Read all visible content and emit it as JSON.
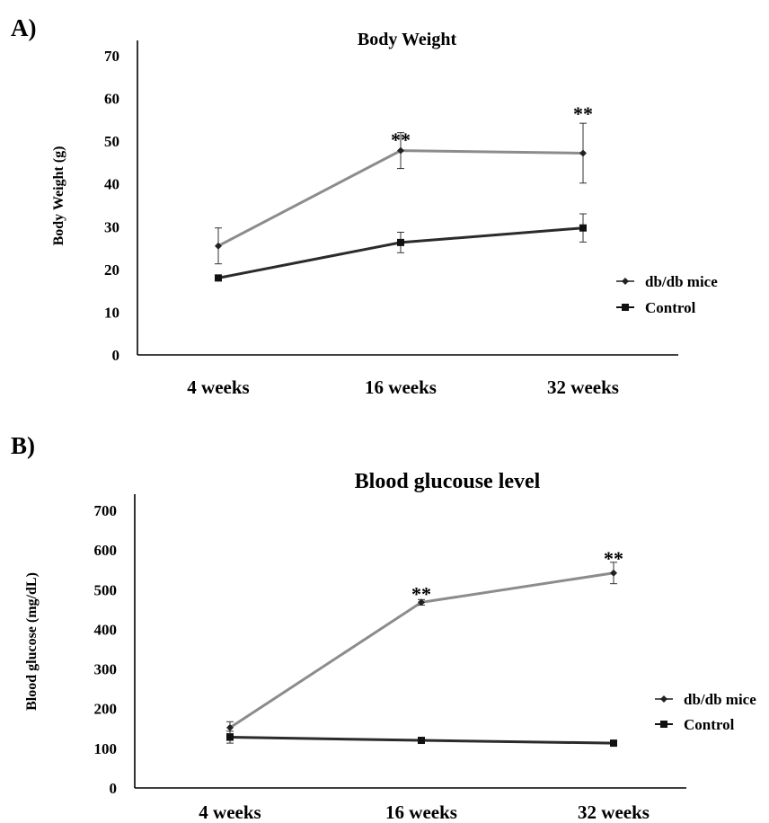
{
  "chart_data": [
    {
      "panel_label": "A)",
      "type": "line",
      "title": "Body Weight",
      "xlabel": "",
      "ylabel": "Body Weight (g)",
      "categories": [
        "4 weeks",
        "16 weeks",
        "32 weeks"
      ],
      "ylim": [
        0,
        70
      ],
      "yticks": [
        0,
        10,
        20,
        30,
        40,
        50,
        60,
        70
      ],
      "grid": false,
      "legend_position": "right",
      "series": [
        {
          "name": "db/db mice",
          "color": "#8c8c8c",
          "marker": "diamond",
          "values": [
            25.5,
            47.8,
            47.2
          ],
          "errors": [
            4.2,
            4.2,
            7.0
          ]
        },
        {
          "name": "Control",
          "color": "#2b2b2b",
          "marker": "square",
          "values": [
            18.0,
            26.3,
            29.7
          ],
          "errors": [
            0.5,
            2.4,
            3.3
          ]
        }
      ],
      "annotations": [
        {
          "text": "**",
          "category": "16 weeks",
          "y": 50.5
        },
        {
          "text": "**",
          "category": "32 weeks",
          "y": 56.5
        }
      ]
    },
    {
      "panel_label": "B)",
      "type": "line",
      "title": "Blood glucouse level",
      "xlabel": "",
      "ylabel": "Blood glucose (mg/dL)",
      "categories": [
        "4 weeks",
        "16 weeks",
        "32 weeks"
      ],
      "ylim": [
        0,
        700
      ],
      "yticks": [
        0,
        100,
        200,
        300,
        400,
        500,
        600,
        700
      ],
      "grid": false,
      "legend_position": "right",
      "series": [
        {
          "name": "db/db mice",
          "color": "#8c8c8c",
          "marker": "diamond",
          "values": [
            152,
            468,
            542
          ],
          "errors": [
            15,
            7,
            27
          ]
        },
        {
          "name": "Control",
          "color": "#2b2b2b",
          "marker": "square",
          "values": [
            128,
            120,
            113
          ],
          "errors": [
            15,
            4,
            3
          ]
        }
      ],
      "annotations": [
        {
          "text": "**",
          "category": "16 weeks",
          "y": 490
        },
        {
          "text": "**",
          "category": "32 weeks",
          "y": 580
        }
      ]
    }
  ]
}
